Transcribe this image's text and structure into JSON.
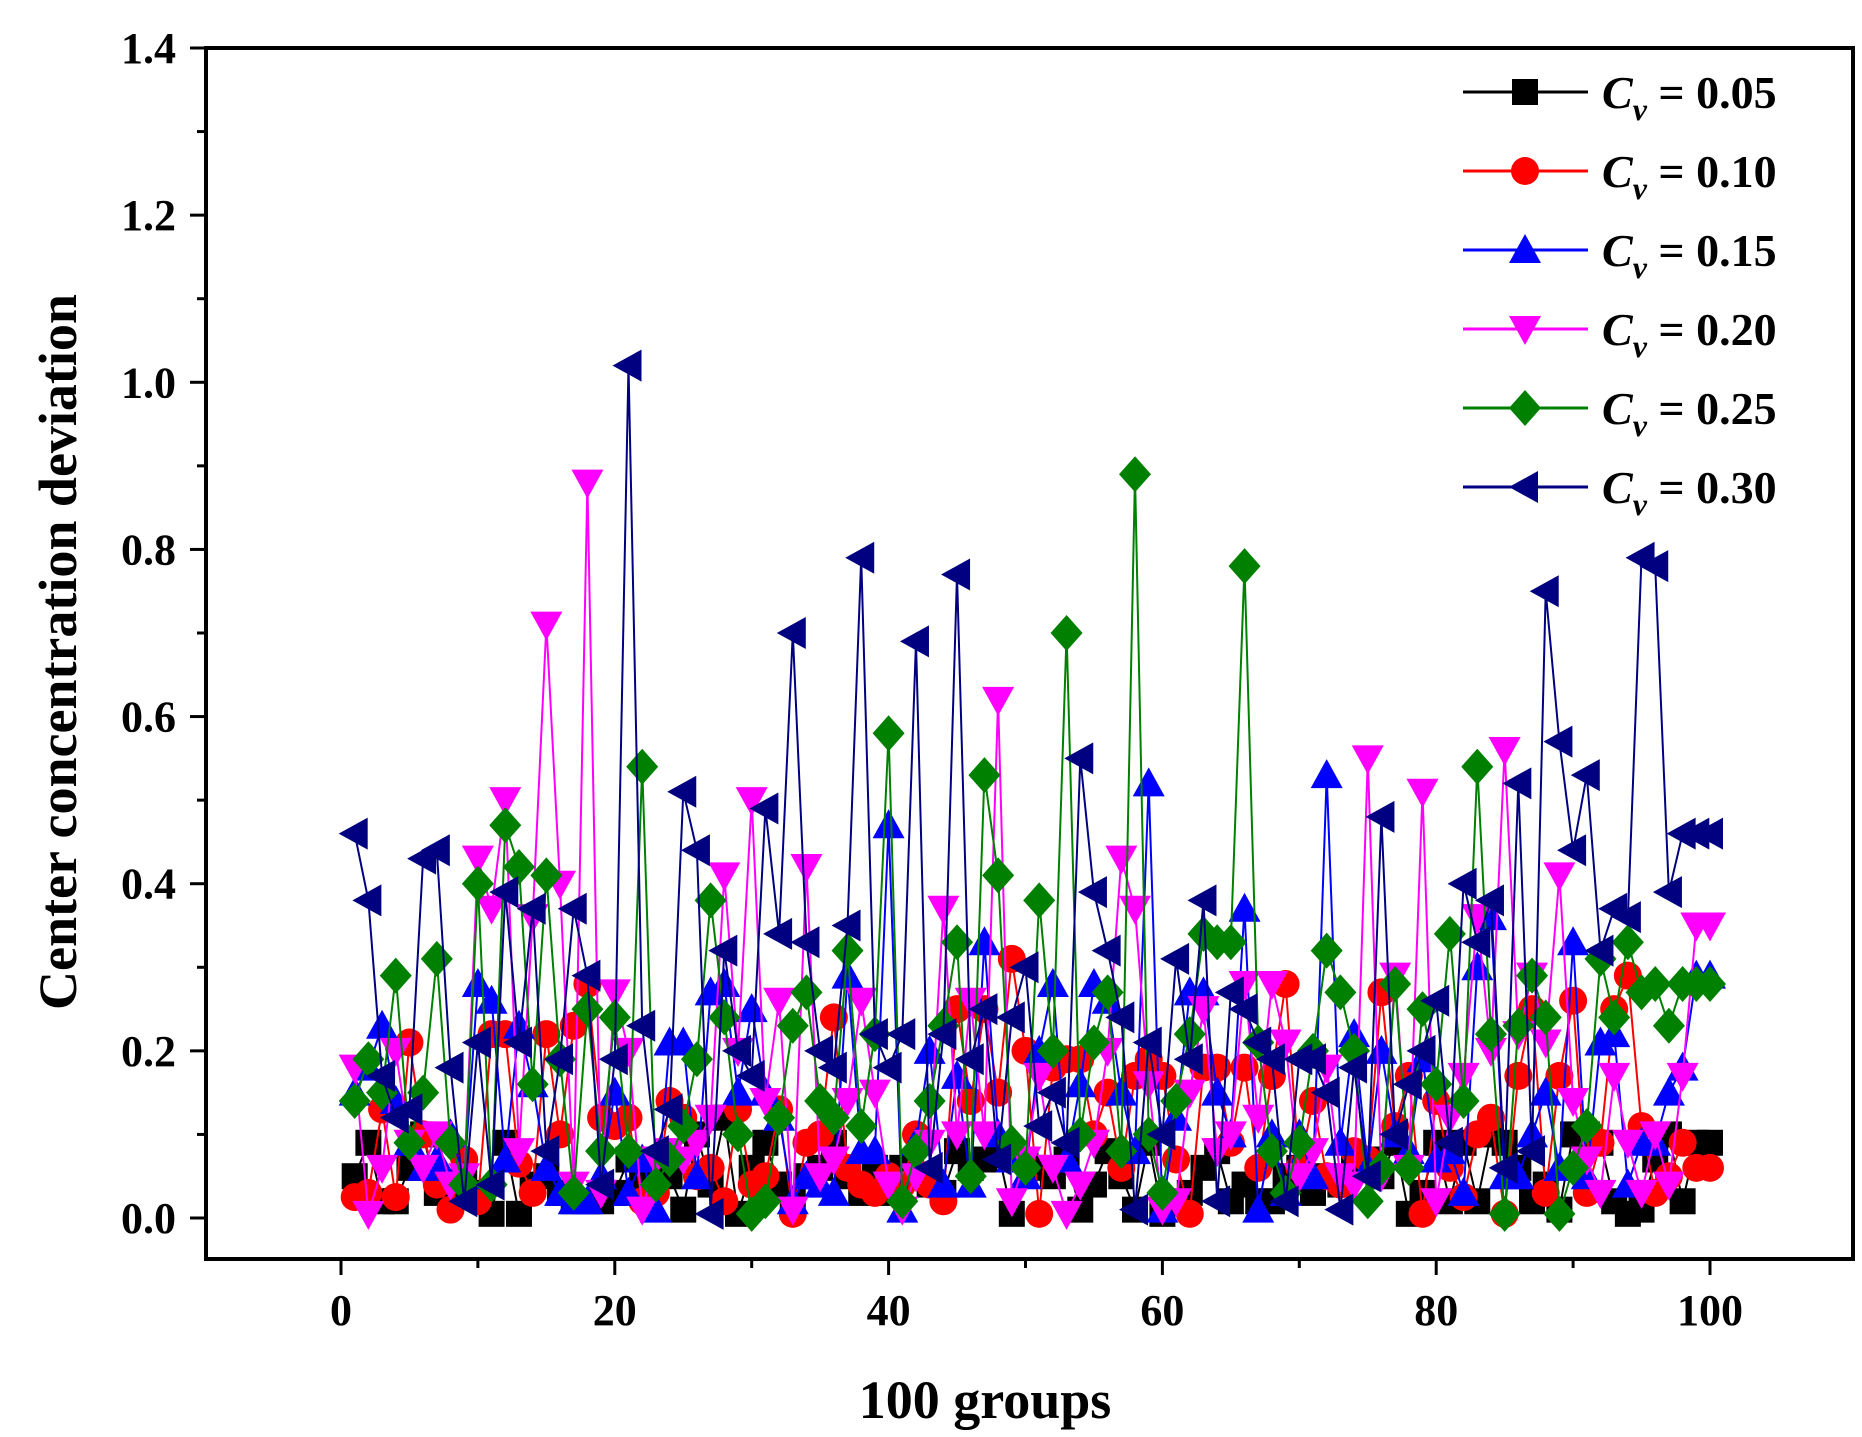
{
  "chart_data": {
    "type": "line",
    "title": "",
    "xlabel": "100 groups",
    "ylabel": "Center concentration deviation",
    "xlim": [
      -10,
      110
    ],
    "ylim": [
      -0.05,
      1.4
    ],
    "xticks": [
      0,
      20,
      40,
      60,
      80,
      100
    ],
    "xtick_labels": [
      "0",
      "20",
      "40",
      "60",
      "80",
      "100"
    ],
    "yticks": [
      0.0,
      0.2,
      0.4,
      0.6,
      0.8,
      1.0,
      1.2,
      1.4
    ],
    "ytick_labels": [
      "0.0",
      "0.2",
      "0.4",
      "0.6",
      "0.8",
      "1.0",
      "1.2",
      "1.4"
    ],
    "grid": false,
    "legend_position": "top-right",
    "legend_prefix": "C",
    "legend_subscript": "v",
    "series": [
      {
        "name": "0.05",
        "color": "#000000",
        "marker": "square",
        "values": [
          0.05,
          0.09,
          0.02,
          0.02,
          0.06,
          0.1,
          0.03,
          0.02,
          0.06,
          0.03,
          0.005,
          0.09,
          0.005,
          0.04,
          0.05,
          0.03,
          0.02,
          0.02,
          0.02,
          0.03,
          0.07,
          0.05,
          0.04,
          0.05,
          0.01,
          0.1,
          0.04,
          0.12,
          0.005,
          0.06,
          0.09,
          0.04,
          0.02,
          0.05,
          0.06,
          0.09,
          0.05,
          0.03,
          0.06,
          0.03,
          0.06,
          0.05,
          0.04,
          0.03,
          0.08,
          0.06,
          0.07,
          0.08,
          0.005,
          0.07,
          0.06,
          0.05,
          0.07,
          0.01,
          0.04,
          0.08,
          0.05,
          0.01,
          0.09,
          0.005,
          0.02,
          0.03,
          0.06,
          0.08,
          0.02,
          0.04,
          0.02,
          0.02,
          0.05,
          0.06,
          0.03,
          0.05,
          0.04,
          0.06,
          0.07,
          0.05,
          0.09,
          0.005,
          0.03,
          0.09,
          0.02,
          0.09,
          0.02,
          0.1,
          0.09,
          0.06,
          0.02,
          0.04,
          0.01,
          0.1,
          0.1,
          0.09,
          0.02,
          0.005,
          0.01,
          0.07,
          0.1,
          0.02,
          0.09,
          0.09
        ]
      },
      {
        "name": "0.10",
        "color": "#ff0000",
        "marker": "circle",
        "values": [
          0.025,
          0.03,
          0.13,
          0.025,
          0.21,
          0.1,
          0.04,
          0.01,
          0.07,
          0.02,
          0.22,
          0.22,
          0.065,
          0.03,
          0.22,
          0.1,
          0.23,
          0.28,
          0.12,
          0.11,
          0.12,
          0.02,
          0.03,
          0.14,
          0.12,
          0.05,
          0.06,
          0.02,
          0.13,
          0.04,
          0.05,
          0.13,
          0.005,
          0.09,
          0.1,
          0.24,
          0.06,
          0.04,
          0.03,
          0.05,
          0.04,
          0.1,
          0.04,
          0.02,
          0.25,
          0.14,
          0.25,
          0.15,
          0.31,
          0.2,
          0.005,
          0.18,
          0.19,
          0.19,
          0.1,
          0.15,
          0.06,
          0.17,
          0.19,
          0.17,
          0.07,
          0.005,
          0.18,
          0.18,
          0.09,
          0.18,
          0.06,
          0.17,
          0.28,
          0.06,
          0.14,
          0.05,
          0.04,
          0.08,
          0.07,
          0.27,
          0.11,
          0.17,
          0.005,
          0.14,
          0.06,
          0.025,
          0.1,
          0.12,
          0.005,
          0.17,
          0.25,
          0.03,
          0.17,
          0.26,
          0.03,
          0.09,
          0.25,
          0.29,
          0.11,
          0.03,
          0.05,
          0.09,
          0.06,
          0.06
        ]
      },
      {
        "name": "0.15",
        "color": "#0000ff",
        "marker": "triangle-up",
        "values": [
          0.15,
          0.18,
          0.23,
          0.14,
          0.09,
          0.06,
          0.07,
          0.1,
          0.05,
          0.28,
          0.26,
          0.07,
          0.23,
          0.16,
          0.06,
          0.03,
          0.02,
          0.02,
          0.05,
          0.15,
          0.03,
          0.07,
          0.01,
          0.21,
          0.21,
          0.05,
          0.27,
          0.28,
          0.15,
          0.25,
          0.15,
          0.12,
          0.02,
          0.05,
          0.04,
          0.03,
          0.29,
          0.08,
          0.08,
          0.47,
          0.01,
          0.09,
          0.2,
          0.04,
          0.17,
          0.04,
          0.33,
          0.1,
          0.07,
          0.05,
          0.2,
          0.28,
          0.07,
          0.16,
          0.28,
          0.26,
          0.15,
          0.08,
          0.52,
          0.01,
          0.12,
          0.27,
          0.27,
          0.15,
          0.1,
          0.37,
          0.01,
          0.1,
          0.03,
          0.1,
          0.05,
          0.53,
          0.09,
          0.22,
          0.06,
          0.2,
          0.1,
          0.08,
          0.19,
          0.07,
          0.08,
          0.03,
          0.3,
          0.36,
          0.05,
          0.05,
          0.1,
          0.15,
          0.06,
          0.33,
          0.05,
          0.21,
          0.22,
          0.04,
          0.09,
          0.09,
          0.15,
          0.18,
          0.29,
          0.29
        ]
      },
      {
        "name": "0.20",
        "color": "#ff00ff",
        "marker": "triangle-down",
        "values": [
          0.18,
          0.005,
          0.06,
          0.2,
          0.09,
          0.06,
          0.1,
          0.04,
          0.05,
          0.43,
          0.37,
          0.5,
          0.08,
          0.36,
          0.71,
          0.4,
          0.04,
          0.88,
          0.03,
          0.27,
          0.2,
          0.01,
          0.07,
          0.08,
          0.07,
          0.09,
          0.12,
          0.41,
          0.2,
          0.5,
          0.14,
          0.26,
          0.01,
          0.42,
          0.05,
          0.07,
          0.14,
          0.26,
          0.15,
          0.04,
          0.01,
          0.05,
          0.09,
          0.37,
          0.1,
          0.26,
          0.1,
          0.62,
          0.02,
          0.07,
          0.17,
          0.06,
          0.005,
          0.04,
          0.09,
          0.2,
          0.43,
          0.37,
          0.16,
          0.01,
          0.02,
          0.15,
          0.25,
          0.08,
          0.1,
          0.28,
          0.12,
          0.28,
          0.21,
          0.05,
          0.08,
          0.18,
          0.05,
          0.04,
          0.55,
          0.05,
          0.29,
          0.06,
          0.51,
          0.02,
          0.12,
          0.17,
          0.36,
          0.2,
          0.56,
          0.22,
          0.29,
          0.21,
          0.41,
          0.14,
          0.07,
          0.03,
          0.17,
          0.09,
          0.03,
          0.1,
          0.04,
          0.17,
          0.35,
          0.35
        ]
      },
      {
        "name": "0.25",
        "color": "#008000",
        "marker": "diamond",
        "values": [
          0.14,
          0.19,
          0.15,
          0.29,
          0.09,
          0.15,
          0.31,
          0.09,
          0.04,
          0.4,
          0.04,
          0.47,
          0.42,
          0.16,
          0.41,
          0.19,
          0.03,
          0.25,
          0.08,
          0.24,
          0.08,
          0.54,
          0.04,
          0.07,
          0.11,
          0.19,
          0.38,
          0.24,
          0.1,
          0.005,
          0.02,
          0.12,
          0.23,
          0.27,
          0.14,
          0.12,
          0.32,
          0.11,
          0.22,
          0.58,
          0.02,
          0.08,
          0.14,
          0.23,
          0.33,
          0.05,
          0.53,
          0.41,
          0.09,
          0.06,
          0.38,
          0.2,
          0.7,
          0.1,
          0.21,
          0.27,
          0.08,
          0.89,
          0.1,
          0.03,
          0.14,
          0.22,
          0.34,
          0.33,
          0.33,
          0.78,
          0.21,
          0.08,
          0.03,
          0.09,
          0.2,
          0.32,
          0.27,
          0.2,
          0.02,
          0.06,
          0.28,
          0.06,
          0.25,
          0.16,
          0.34,
          0.14,
          0.54,
          0.22,
          0.005,
          0.23,
          0.29,
          0.24,
          0.005,
          0.06,
          0.11,
          0.31,
          0.24,
          0.33,
          0.27,
          0.28,
          0.23,
          0.28,
          0.28,
          0.28
        ]
      },
      {
        "name": "0.30",
        "color": "#000080",
        "marker": "triangle-left",
        "values": [
          0.46,
          0.38,
          0.17,
          0.12,
          0.13,
          0.43,
          0.44,
          0.18,
          0.02,
          0.21,
          0.04,
          0.39,
          0.21,
          0.37,
          0.08,
          0.19,
          0.37,
          0.29,
          0.04,
          0.19,
          1.02,
          0.23,
          0.08,
          0.13,
          0.51,
          0.44,
          0.005,
          0.32,
          0.2,
          0.17,
          0.49,
          0.34,
          0.7,
          0.33,
          0.2,
          0.18,
          0.35,
          0.79,
          0.22,
          0.18,
          0.22,
          0.69,
          0.06,
          0.22,
          0.77,
          0.19,
          0.25,
          0.07,
          0.24,
          0.3,
          0.11,
          0.15,
          0.09,
          0.55,
          0.39,
          0.32,
          0.24,
          0.01,
          0.21,
          0.1,
          0.31,
          0.19,
          0.38,
          0.02,
          0.27,
          0.25,
          0.21,
          0.19,
          0.02,
          0.19,
          0.19,
          0.15,
          0.01,
          0.18,
          0.05,
          0.48,
          0.1,
          0.16,
          0.2,
          0.26,
          0.09,
          0.4,
          0.33,
          0.38,
          0.06,
          0.52,
          0.08,
          0.75,
          0.57,
          0.44,
          0.53,
          0.32,
          0.37,
          0.36,
          0.79,
          0.78,
          0.39,
          0.46,
          0.46,
          0.46
        ]
      }
    ]
  }
}
